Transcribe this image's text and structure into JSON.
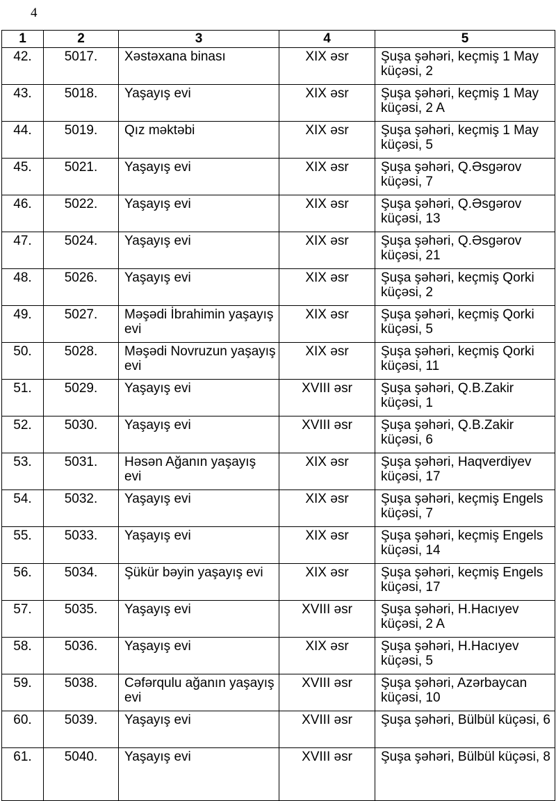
{
  "page_number": "4",
  "headers": [
    "1",
    "2",
    "3",
    "4",
    "5"
  ],
  "rows": [
    {
      "no": "42.",
      "code": "5017.",
      "name": "Xəstəxana binası",
      "period": "XIX əsr",
      "address": "Şuşa şəhəri, keçmiş 1 May küçəsi, 2"
    },
    {
      "no": "43.",
      "code": "5018.",
      "name": "Yaşayış evi",
      "period": "XIX əsr",
      "address": "Şuşa şəhəri, keçmiş 1 May küçəsi, 2 A"
    },
    {
      "no": "44.",
      "code": "5019.",
      "name": "Qız məktəbi",
      "period": "XIX əsr",
      "address": "Şuşa şəhəri, keçmiş 1 May küçəsi, 5"
    },
    {
      "no": "45.",
      "code": "5021.",
      "name": "Yaşayış evi",
      "period": "XIX əsr",
      "address": "Şuşa şəhəri, Q.Əsgərov küçəsi, 7"
    },
    {
      "no": "46.",
      "code": "5022.",
      "name": "Yaşayış evi",
      "period": "XIX əsr",
      "address": "Şuşa şəhəri, Q.Əsgərov küçəsi, 13"
    },
    {
      "no": "47.",
      "code": "5024.",
      "name": "Yaşayış evi",
      "period": "XIX əsr",
      "address": "Şuşa şəhəri, Q.Əsgərov küçəsi, 21"
    },
    {
      "no": "48.",
      "code": "5026.",
      "name": "Yaşayış evi",
      "period": "XIX əsr",
      "address": "Şuşa şəhəri, keçmiş Qorki küçəsi, 2"
    },
    {
      "no": "49.",
      "code": "5027.",
      "name": "Məşədi İbrahimin yaşayış evi",
      "period": "XIX əsr",
      "address": "Şuşa şəhəri, keçmiş Qorki küçəsi, 5"
    },
    {
      "no": "50.",
      "code": "5028.",
      "name": "Məşədi Novruzun yaşayış evi",
      "period": "XIX əsr",
      "address": "Şuşa şəhəri, keçmiş Qorki küçəsi, 11"
    },
    {
      "no": "51.",
      "code": "5029.",
      "name": "Yaşayış evi",
      "period": "XVIII əsr",
      "address": "Şuşa şəhəri, Q.B.Zakir küçəsi, 1"
    },
    {
      "no": "52.",
      "code": "5030.",
      "name": "Yaşayış evi",
      "period": "XVIII əsr",
      "address": "Şuşa şəhəri, Q.B.Zakir küçəsi, 6"
    },
    {
      "no": "53.",
      "code": "5031.",
      "name": "Həsən Ağanın yaşayış evi",
      "period": "XIX əsr",
      "address": "Şuşa şəhəri, Haqverdiyev küçəsi, 17"
    },
    {
      "no": "54.",
      "code": "5032.",
      "name": "Yaşayış evi",
      "period": "XIX əsr",
      "address": "Şuşa şəhəri, keçmiş Engels küçəsi, 7"
    },
    {
      "no": "55.",
      "code": "5033.",
      "name": "Yaşayış evi",
      "period": "XIX əsr",
      "address": "Şuşa şəhəri, keçmiş Engels küçəsi, 14"
    },
    {
      "no": "56.",
      "code": "5034.",
      "name": "Şükür bəyin yaşayış evi",
      "period": "XIX əsr",
      "address": "Şuşa şəhəri, keçmiş Engels küçəsi, 17"
    },
    {
      "no": "57.",
      "code": "5035.",
      "name": "Yaşayış evi",
      "period": "XVIII əsr",
      "address": "Şuşa şəhəri, H.Hacıyev küçəsi, 2 A"
    },
    {
      "no": "58.",
      "code": "5036.",
      "name": "Yaşayış evi",
      "period": "XIX əsr",
      "address": "Şuşa şəhəri, H.Hacıyev küçəsi, 5"
    },
    {
      "no": "59.",
      "code": "5038.",
      "name": "Cəfərqulu ağanın yaşayış evi",
      "period": "XVIII əsr",
      "address": "Şuşa şəhəri, Azərbaycan küçəsi, 10"
    },
    {
      "no": "60.",
      "code": "5039.",
      "name": "Yaşayış evi",
      "period": "XVIII əsr",
      "address": "Şuşa şəhəri, Bülbül küçəsi, 6"
    },
    {
      "no": "61.",
      "code": "5040.",
      "name": "Yaşayış evi",
      "period": "XVIII əsr",
      "address": "Şuşa şəhəri, Bülbül küçəsi, 8"
    }
  ]
}
